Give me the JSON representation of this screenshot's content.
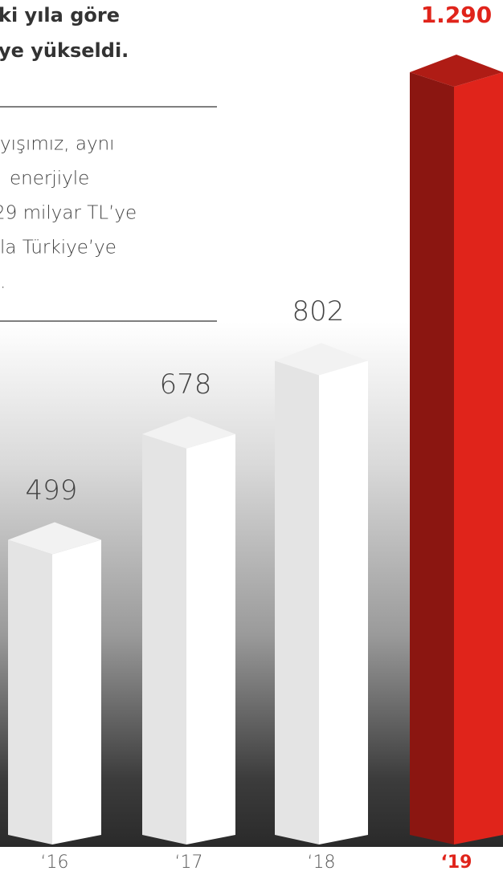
{
  "heading": [
    "ki yıla göre",
    "ye yükseldi."
  ],
  "paragraph": [
    "yışımız, aynı",
    "enerjiyle",
    "29 milyar TL’ye",
    "la Türkiye’ye",
    "."
  ],
  "chart_data": {
    "type": "bar",
    "categories": [
      "‘16",
      "‘17",
      "‘18",
      "‘19"
    ],
    "values": [
      499,
      678,
      802,
      1290
    ],
    "value_labels": [
      "499",
      "678",
      "802",
      "1.290"
    ],
    "colors": [
      "#ffffff",
      "#ffffff",
      "#ffffff",
      "#e0241b"
    ]
  }
}
